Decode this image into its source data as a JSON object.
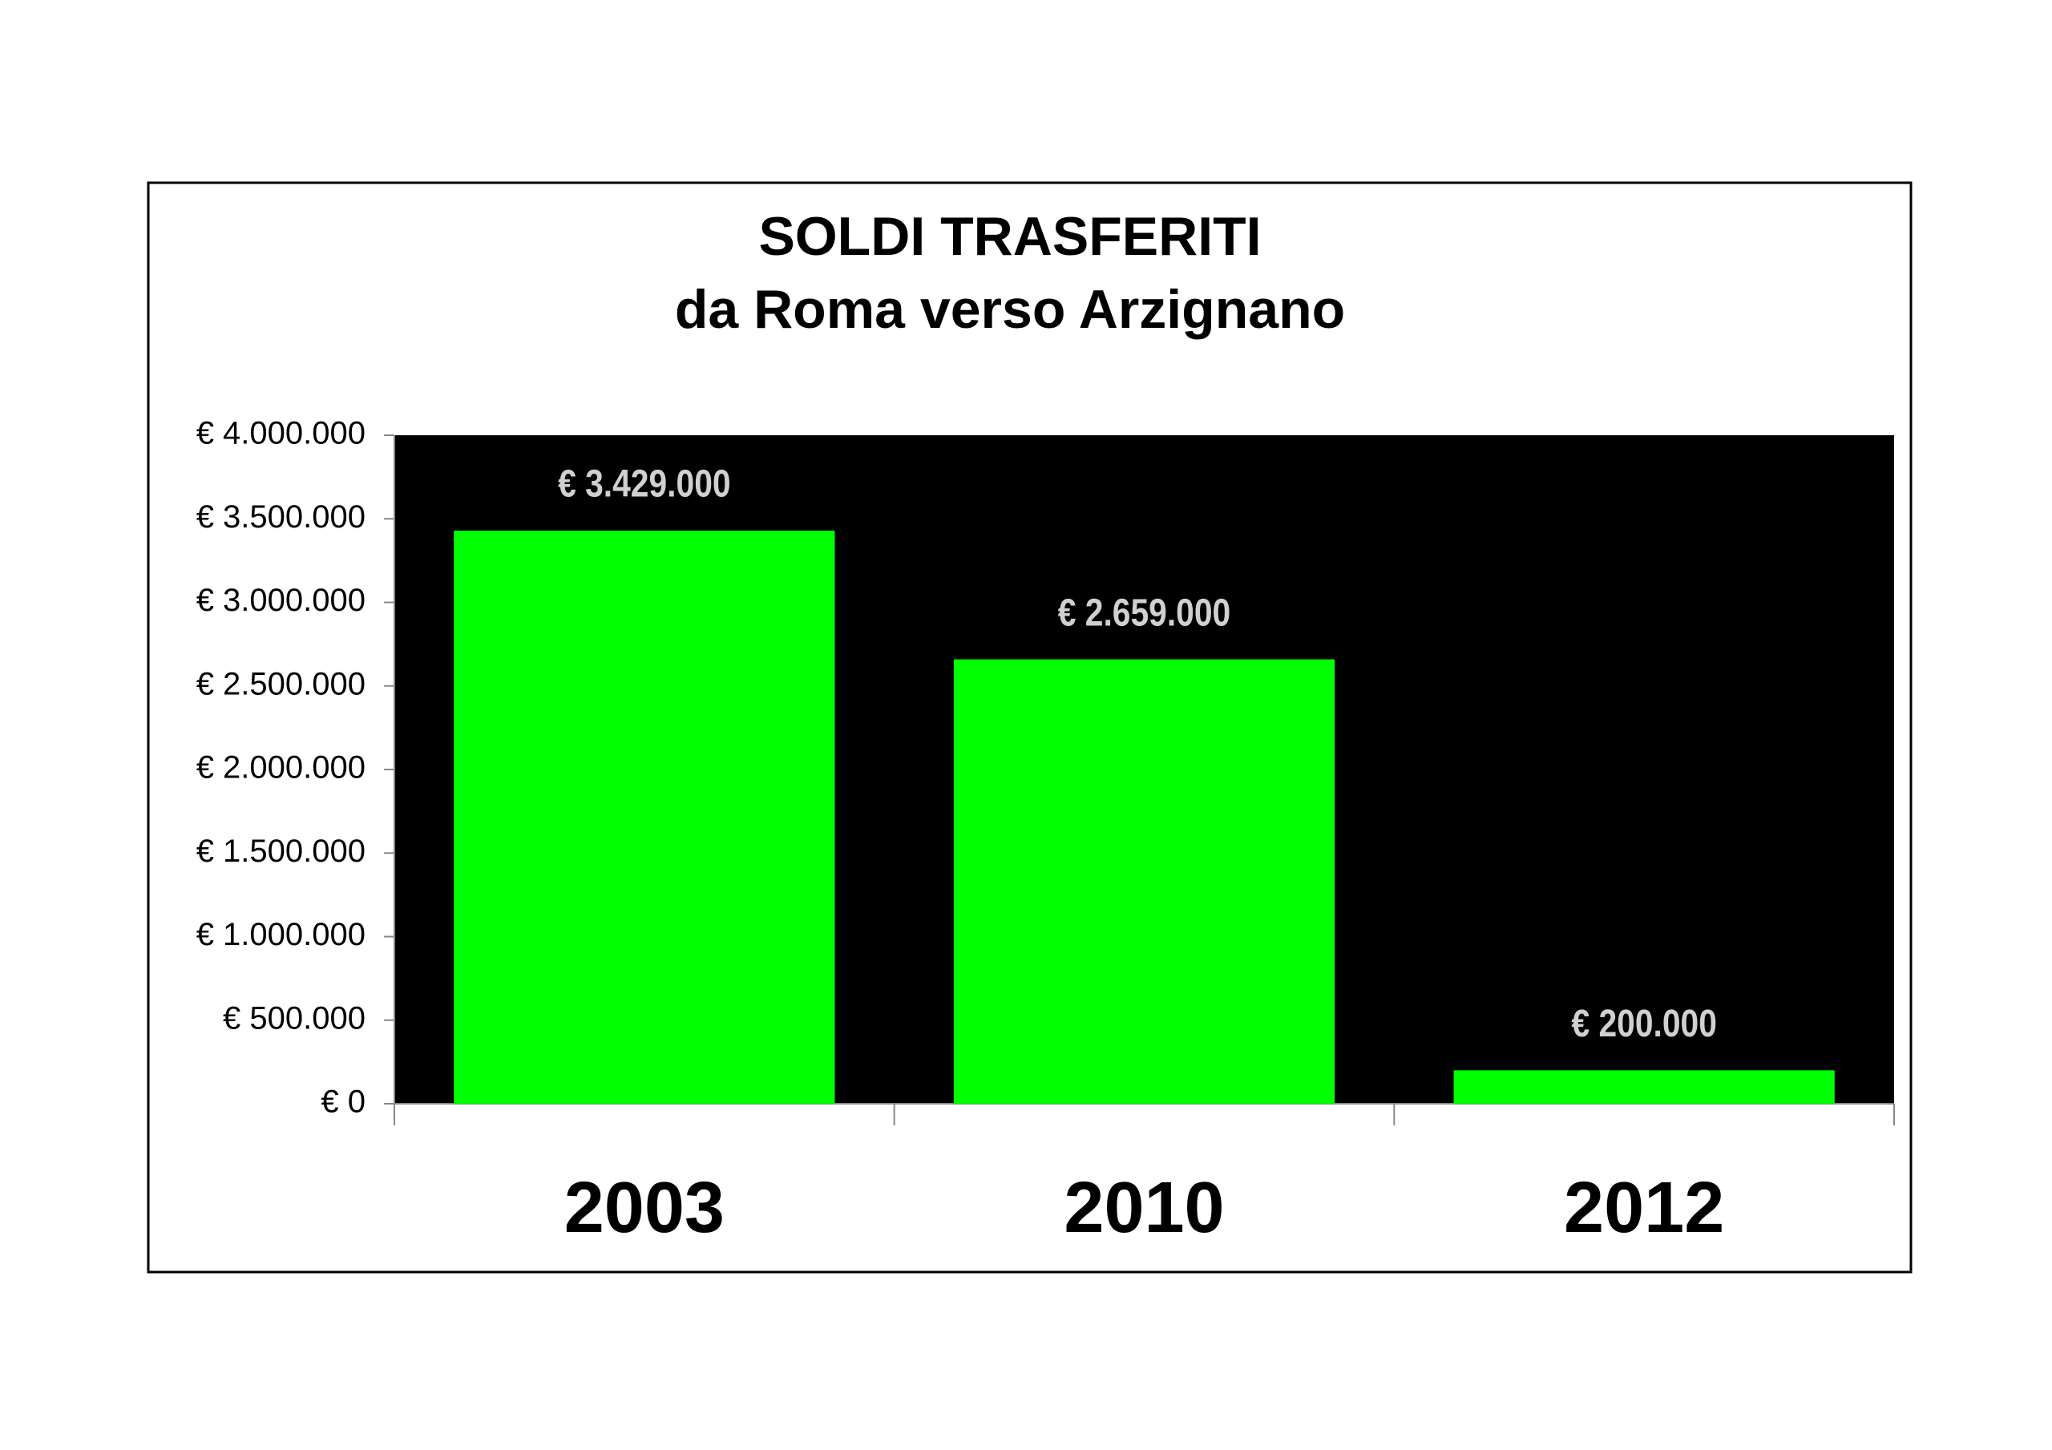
{
  "chart_data": {
    "type": "bar",
    "title": "SOLDI TRASFERITI",
    "subtitle": "da Roma verso Arzignano",
    "categories": [
      "2003",
      "2010",
      "2012"
    ],
    "values": [
      3429000,
      2659000,
      200000
    ],
    "value_labels": [
      "€ 3.429.000",
      "€ 2.659.000",
      "€ 200.000"
    ],
    "color": "#00ff00",
    "ylim": [
      0,
      4000000
    ],
    "yticks": [
      {
        "value": 0,
        "label": "€ 0"
      },
      {
        "value": 500000,
        "label": "€ 500.000"
      },
      {
        "value": 1000000,
        "label": "€ 1.000.000"
      },
      {
        "value": 1500000,
        "label": "€ 1.500.000"
      },
      {
        "value": 2000000,
        "label": "€ 2.000.000"
      },
      {
        "value": 2500000,
        "label": "€ 2.500.000"
      },
      {
        "value": 3000000,
        "label": "€ 3.000.000"
      },
      {
        "value": 3500000,
        "label": "€ 3.500.000"
      },
      {
        "value": 4000000,
        "label": "€ 4.000.000"
      }
    ]
  }
}
